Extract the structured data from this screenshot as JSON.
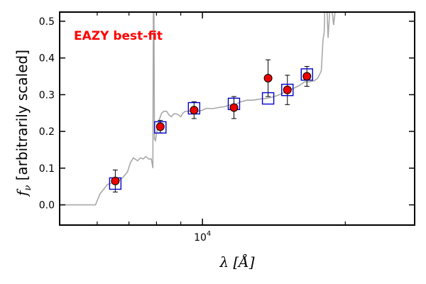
{
  "chart_data": {
    "type": "scatter",
    "annotation": {
      "text": "EAZY best-fit",
      "color": "#ff0000"
    },
    "xlabel": {
      "prefix": "λ [",
      "unit": "Å",
      "suffix": "]"
    },
    "ylabel": {
      "prefix": "f",
      "sub": "ν",
      "suffix": " [arbitrarily scaled]"
    },
    "xscale": "log",
    "xlim": [
      5000,
      28000
    ],
    "ylim": [
      -0.055,
      0.525
    ],
    "y_ticks": [
      0.0,
      0.1,
      0.2,
      0.3,
      0.4,
      0.5
    ],
    "y_tick_labels": [
      "0.0",
      "0.1",
      "0.2",
      "0.3",
      "0.4",
      "0.5"
    ],
    "x_major_ticks": [
      10000
    ],
    "x_tick_labels": [
      {
        "base": "10",
        "exp": "4"
      }
    ],
    "x_minor_ticks": [
      6000,
      7000,
      8000,
      9000,
      20000
    ],
    "colors": {
      "observed": "#ee0000",
      "model_box": "#0000cc",
      "template": "#a8a8a8",
      "error": "#000000"
    },
    "observed": [
      {
        "x": 6550,
        "y": 0.065,
        "err": 0.03
      },
      {
        "x": 8150,
        "y": 0.213,
        "err": 0.017
      },
      {
        "x": 9600,
        "y": 0.258,
        "err": 0.023
      },
      {
        "x": 11650,
        "y": 0.265,
        "err": 0.03
      },
      {
        "x": 13750,
        "y": 0.345,
        "err": 0.05
      },
      {
        "x": 15100,
        "y": 0.313,
        "err": 0.04
      },
      {
        "x": 16600,
        "y": 0.35,
        "err": 0.027
      }
    ],
    "model": [
      {
        "x": 6550,
        "y": 0.058
      },
      {
        "x": 8150,
        "y": 0.211
      },
      {
        "x": 9600,
        "y": 0.263
      },
      {
        "x": 11650,
        "y": 0.275
      },
      {
        "x": 13750,
        "y": 0.29
      },
      {
        "x": 15100,
        "y": 0.313
      },
      {
        "x": 16600,
        "y": 0.355
      }
    ],
    "template_sed": [
      [
        5000,
        0.0
      ],
      [
        5950,
        0.0
      ],
      [
        6080,
        0.03
      ],
      [
        6300,
        0.055
      ],
      [
        6450,
        0.06
      ],
      [
        6650,
        0.065
      ],
      [
        6800,
        0.075
      ],
      [
        6950,
        0.09
      ],
      [
        7050,
        0.115
      ],
      [
        7150,
        0.128
      ],
      [
        7300,
        0.12
      ],
      [
        7400,
        0.128
      ],
      [
        7500,
        0.125
      ],
      [
        7600,
        0.132
      ],
      [
        7700,
        0.125
      ],
      [
        7800,
        0.125
      ],
      [
        7840,
        0.11
      ],
      [
        7860,
        0.1
      ],
      [
        7880,
        0.53
      ],
      [
        7900,
        0.53
      ],
      [
        7920,
        0.18
      ],
      [
        7960,
        0.175
      ],
      [
        8050,
        0.215
      ],
      [
        8100,
        0.23
      ],
      [
        8200,
        0.25
      ],
      [
        8300,
        0.255
      ],
      [
        8400,
        0.255
      ],
      [
        8500,
        0.245
      ],
      [
        8600,
        0.24
      ],
      [
        8700,
        0.248
      ],
      [
        8800,
        0.248
      ],
      [
        8900,
        0.245
      ],
      [
        9000,
        0.24
      ],
      [
        9100,
        0.25
      ],
      [
        9200,
        0.255
      ],
      [
        9400,
        0.255
      ],
      [
        9600,
        0.258
      ],
      [
        9800,
        0.255
      ],
      [
        10000,
        0.258
      ],
      [
        10200,
        0.263
      ],
      [
        10500,
        0.262
      ],
      [
        10800,
        0.265
      ],
      [
        11100,
        0.267
      ],
      [
        11400,
        0.272
      ],
      [
        11700,
        0.272
      ],
      [
        12000,
        0.28
      ],
      [
        12400,
        0.285
      ],
      [
        12800,
        0.285
      ],
      [
        13200,
        0.288
      ],
      [
        13600,
        0.29
      ],
      [
        14000,
        0.293
      ],
      [
        14400,
        0.298
      ],
      [
        14800,
        0.305
      ],
      [
        15200,
        0.312
      ],
      [
        15600,
        0.318
      ],
      [
        16000,
        0.325
      ],
      [
        16400,
        0.335
      ],
      [
        16800,
        0.335
      ],
      [
        17200,
        0.338
      ],
      [
        17500,
        0.345
      ],
      [
        17800,
        0.365
      ],
      [
        17950,
        0.45
      ],
      [
        18050,
        0.47
      ],
      [
        18100,
        0.53
      ],
      [
        18300,
        0.53
      ],
      [
        18400,
        0.455
      ],
      [
        18550,
        0.53
      ],
      [
        18750,
        0.53
      ],
      [
        18900,
        0.49
      ],
      [
        19050,
        0.53
      ],
      [
        28000,
        0.53
      ]
    ]
  }
}
